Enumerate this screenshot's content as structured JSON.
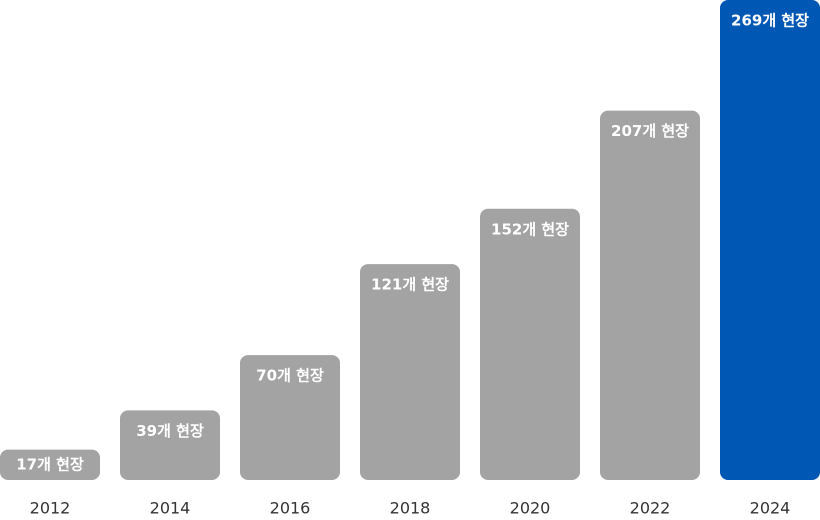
{
  "chart_data": {
    "type": "bar",
    "categories": [
      "2012",
      "2014",
      "2016",
      "2018",
      "2020",
      "2022",
      "2024"
    ],
    "values": [
      17,
      39,
      70,
      121,
      152,
      207,
      269
    ],
    "value_labels": [
      "17개 현장",
      "39개 현장",
      "70개 현장",
      "121개 현장",
      "152개 현장",
      "207개 현장",
      "269개 현장"
    ],
    "colors": [
      "#a3a3a3",
      "#a3a3a3",
      "#a3a3a3",
      "#a3a3a3",
      "#a3a3a3",
      "#a3a3a3",
      "#0057b4"
    ]
  }
}
